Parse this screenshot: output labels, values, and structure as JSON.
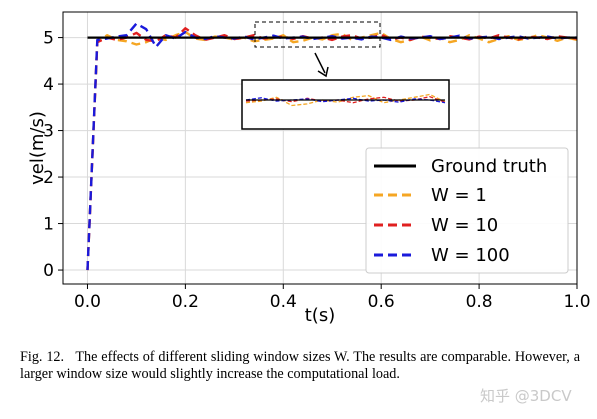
{
  "chart_data": {
    "type": "line",
    "xlabel": "t(s)",
    "ylabel": "vel(m/s)",
    "xlim": [
      -0.05,
      1.0
    ],
    "ylim": [
      -0.3,
      5.55
    ],
    "xticks": [
      "0.0",
      "0.2",
      "0.4",
      "0.6",
      "0.8",
      "1.0"
    ],
    "yticks": [
      "0",
      "1",
      "2",
      "3",
      "4",
      "5"
    ],
    "grid": true,
    "legend_position": "lower-right",
    "series": [
      {
        "name": "Ground truth",
        "style": "solid",
        "color": "#000000",
        "x": [
          0.0,
          1.0
        ],
        "y": [
          5.0,
          5.0
        ]
      },
      {
        "name": "W = 1",
        "style": "dashed",
        "color": "#f5a623",
        "x": [
          0.0,
          0.02,
          0.04,
          0.06,
          0.08,
          0.1,
          0.12,
          0.14,
          0.16,
          0.18,
          0.2,
          0.22,
          0.24,
          0.26,
          0.28,
          0.3,
          0.32,
          0.34,
          0.36,
          0.38,
          0.4,
          0.42,
          0.44,
          0.46,
          0.48,
          0.5,
          0.52,
          0.54,
          0.56,
          0.58,
          0.6,
          0.62,
          0.64,
          0.66,
          0.68,
          0.7,
          0.72,
          0.74,
          0.76,
          0.78,
          0.8,
          0.82,
          0.84,
          0.86,
          0.88,
          0.9,
          0.92,
          0.94,
          0.96,
          0.98,
          1.0
        ],
        "y": [
          0.0,
          4.9,
          5.05,
          4.95,
          4.92,
          4.85,
          4.9,
          5.0,
          4.95,
          5.05,
          5.12,
          4.98,
          4.95,
          5.02,
          5.0,
          4.96,
          5.0,
          4.92,
          4.95,
          4.98,
          5.05,
          4.9,
          4.93,
          5.0,
          4.96,
          5.05,
          5.08,
          4.95,
          5.0,
          5.05,
          5.1,
          4.97,
          4.9,
          4.95,
          5.02,
          4.94,
          5.0,
          4.9,
          4.95,
          5.05,
          4.98,
          4.9,
          4.97,
          5.03,
          4.95,
          4.98,
          5.05,
          5.0,
          4.93,
          5.0,
          4.95
        ]
      },
      {
        "name": "W = 10",
        "style": "dashed",
        "color": "#e02020",
        "x": [
          0.0,
          0.02,
          0.04,
          0.06,
          0.08,
          0.1,
          0.12,
          0.14,
          0.16,
          0.18,
          0.2,
          0.22,
          0.24,
          0.26,
          0.28,
          0.3,
          0.32,
          0.34,
          0.36,
          0.38,
          0.4,
          0.42,
          0.44,
          0.46,
          0.48,
          0.5,
          0.52,
          0.54,
          0.56,
          0.58,
          0.6,
          0.62,
          0.64,
          0.66,
          0.68,
          0.7,
          0.72,
          0.74,
          0.76,
          0.78,
          0.8,
          0.82,
          0.84,
          0.86,
          0.88,
          0.9,
          0.92,
          0.94,
          0.96,
          0.98,
          1.0
        ],
        "y": [
          0.0,
          4.9,
          5.0,
          4.95,
          5.0,
          5.1,
          4.95,
          4.92,
          5.05,
          5.0,
          5.2,
          5.05,
          4.95,
          5.0,
          5.05,
          4.97,
          5.0,
          5.05,
          4.98,
          5.0,
          5.02,
          4.97,
          5.03,
          4.98,
          5.0,
          4.95,
          5.02,
          5.05,
          4.98,
          5.0,
          5.06,
          4.96,
          5.0,
          4.95,
          5.02,
          5.0,
          4.97,
          5.03,
          5.0,
          4.96,
          5.02,
          4.98,
          5.05,
          5.0,
          4.96,
          5.02,
          5.0,
          4.97,
          5.03,
          5.0,
          4.98
        ]
      },
      {
        "name": "W = 100",
        "style": "dashed",
        "color": "#1a1adb",
        "x": [
          0.0,
          0.02,
          0.04,
          0.06,
          0.08,
          0.1,
          0.12,
          0.14,
          0.16,
          0.18,
          0.2,
          0.22,
          0.24,
          0.26,
          0.28,
          0.3,
          0.32,
          0.34,
          0.36,
          0.38,
          0.4,
          0.42,
          0.44,
          0.46,
          0.48,
          0.5,
          0.52,
          0.54,
          0.56,
          0.58,
          0.6,
          0.62,
          0.64,
          0.66,
          0.68,
          0.7,
          0.72,
          0.74,
          0.76,
          0.78,
          0.8,
          0.82,
          0.84,
          0.86,
          0.88,
          0.9,
          0.92,
          0.94,
          0.96,
          0.98,
          1.0
        ],
        "y": [
          0.0,
          4.95,
          4.98,
          5.02,
          5.05,
          5.3,
          5.18,
          4.8,
          5.05,
          4.98,
          5.12,
          5.0,
          4.97,
          5.03,
          5.0,
          4.98,
          5.02,
          4.96,
          5.0,
          5.04,
          4.98,
          5.0,
          5.02,
          4.97,
          5.0,
          5.03,
          4.98,
          5.0,
          4.96,
          5.02,
          5.0,
          4.95,
          5.02,
          4.98,
          5.0,
          5.03,
          4.97,
          5.0,
          5.04,
          4.98,
          5.0,
          5.02,
          4.97,
          5.0,
          5.03,
          4.98,
          5.0,
          5.02,
          4.98,
          5.0,
          5.0
        ]
      }
    ]
  },
  "caption": {
    "label": "Fig. 12.   ",
    "text": "The effects of different sliding window sizes W. The results are comparable. However, a larger window size would slightly increase the computational load."
  },
  "watermark": "知乎 @3DCV"
}
